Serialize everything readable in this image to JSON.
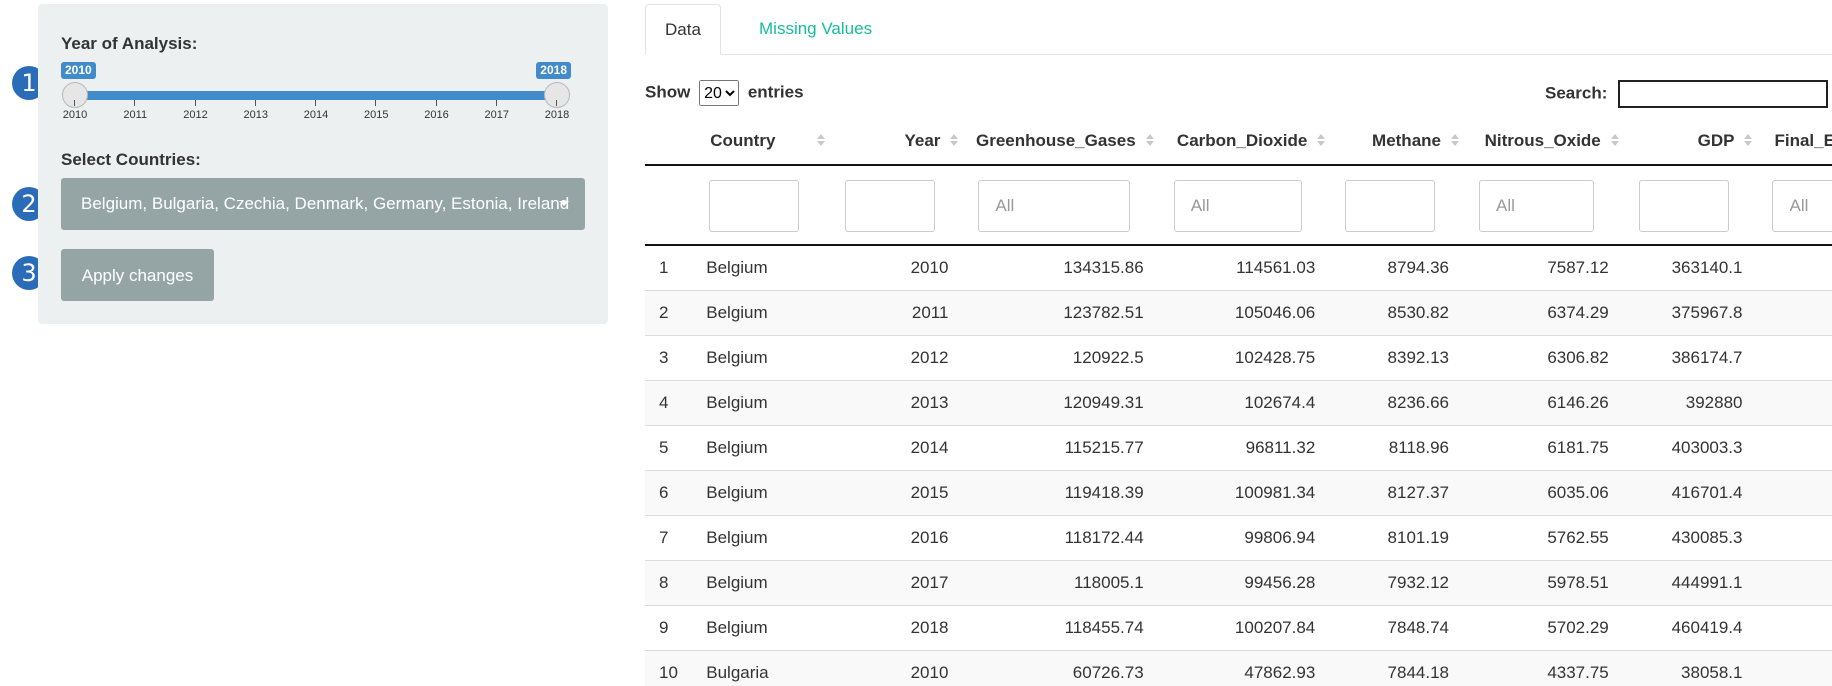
{
  "callouts": [
    "1",
    "2",
    "3"
  ],
  "sidebar": {
    "year_label": "Year of Analysis:",
    "slider": {
      "min_label": "2010",
      "max_label": "2018",
      "ticks": [
        "2010",
        "2011",
        "2012",
        "2013",
        "2014",
        "2015",
        "2016",
        "2017",
        "2018"
      ]
    },
    "countries_label": "Select Countries:",
    "countries_value": "Belgium, Bulgaria, Czechia, Denmark, Germany, Estonia, Ireland",
    "apply_label": "Apply changes"
  },
  "tabs": [
    {
      "label": "Data"
    },
    {
      "label": "Missing Values"
    }
  ],
  "table_controls": {
    "show_label": "Show",
    "entries_value": "20",
    "entries_label": "entries",
    "search_label": "Search:"
  },
  "table": {
    "columns": [
      "Country",
      "Year",
      "Greenhouse_Gases",
      "Carbon_Dioxide",
      "Methane",
      "Nitrous_Oxide",
      "GDP",
      "Final_E"
    ],
    "filter_placeholder": "All",
    "rows": [
      [
        "1",
        "Belgium",
        "2010",
        "134315.86",
        "114561.03",
        "8794.36",
        "7587.12",
        "363140.1"
      ],
      [
        "2",
        "Belgium",
        "2011",
        "123782.51",
        "105046.06",
        "8530.82",
        "6374.29",
        "375967.8"
      ],
      [
        "3",
        "Belgium",
        "2012",
        "120922.5",
        "102428.75",
        "8392.13",
        "6306.82",
        "386174.7"
      ],
      [
        "4",
        "Belgium",
        "2013",
        "120949.31",
        "102674.4",
        "8236.66",
        "6146.26",
        "392880"
      ],
      [
        "5",
        "Belgium",
        "2014",
        "115215.77",
        "96811.32",
        "8118.96",
        "6181.75",
        "403003.3"
      ],
      [
        "6",
        "Belgium",
        "2015",
        "119418.39",
        "100981.34",
        "8127.37",
        "6035.06",
        "416701.4"
      ],
      [
        "7",
        "Belgium",
        "2016",
        "118172.44",
        "99806.94",
        "8101.19",
        "5762.55",
        "430085.3"
      ],
      [
        "8",
        "Belgium",
        "2017",
        "118005.1",
        "99456.28",
        "7932.12",
        "5978.51",
        "444991.1"
      ],
      [
        "9",
        "Belgium",
        "2018",
        "118455.74",
        "100207.84",
        "7848.74",
        "5702.29",
        "460419.4"
      ],
      [
        "10",
        "Bulgaria",
        "2010",
        "60726.73",
        "47862.93",
        "7844.18",
        "4337.75",
        "38058.1"
      ]
    ]
  }
}
